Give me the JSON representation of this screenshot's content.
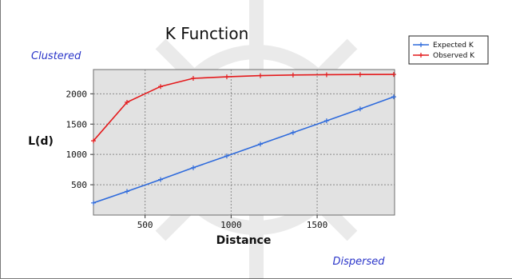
{
  "chart_data": {
    "type": "line",
    "title": "K Function",
    "xlabel": "Distance",
    "ylabel": "L(d)",
    "xlim": [
      200,
      1950
    ],
    "ylim": [
      0,
      2400
    ],
    "x_ticks": [
      500,
      1000,
      1500
    ],
    "y_ticks": [
      500,
      1000,
      1500,
      2000
    ],
    "grid": true,
    "legend_position": "top-right",
    "annotations": {
      "top_left": "Clustered",
      "bottom_right": "Dispersed"
    },
    "x": [
      200,
      395,
      590,
      780,
      975,
      1170,
      1360,
      1555,
      1750,
      1945
    ],
    "series": [
      {
        "name": "Expected K",
        "color": "#2f6bdc",
        "values": [
          200,
          390,
          585,
          780,
          975,
          1170,
          1360,
          1555,
          1750,
          1950
        ]
      },
      {
        "name": "Observed K",
        "color": "#e41a1c",
        "values": [
          1225,
          1860,
          2120,
          2255,
          2280,
          2300,
          2310,
          2315,
          2318,
          2320
        ]
      }
    ]
  }
}
